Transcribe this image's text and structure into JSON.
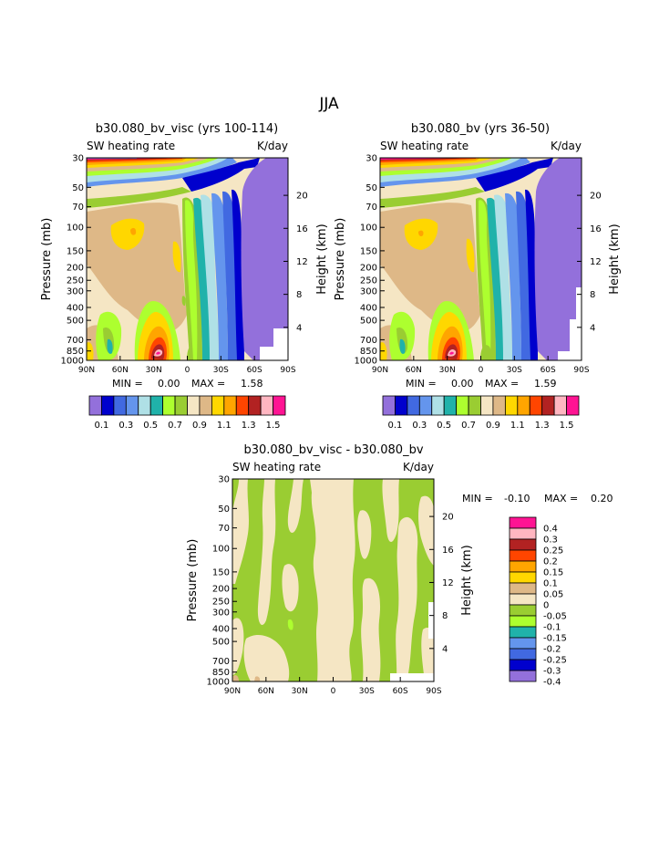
{
  "main_title": "JJA",
  "colors": {
    "scale14": [
      "#9370DB",
      "#0000CD",
      "#4169E1",
      "#6495ED",
      "#AFE0E6",
      "#20B2AA",
      "#ADFF2F",
      "#9ACD32",
      "#F5E6C4",
      "#DEB887",
      "#FFD700",
      "#FFA500",
      "#FF4500",
      "#B22222",
      "#FFB6C1",
      "#FF1493"
    ],
    "diff": [
      "#FF1493",
      "#FFB6C1",
      "#B22222",
      "#FF4500",
      "#FFA500",
      "#FFD700",
      "#DEB887",
      "#F5E6C4",
      "#9ACD32",
      "#ADFF2F",
      "#20B2AA",
      "#6495ED",
      "#4169E1",
      "#0000CD",
      "#9370DB"
    ]
  },
  "chart_data": [
    {
      "type": "heatmap",
      "title": "b30.080_bv_visc (yrs 100-114)",
      "left_label": "SW heating rate",
      "right_label": "K/day",
      "ylabel": "Pressure (mb)",
      "y2label": "Height (km)",
      "xticks": [
        "90N",
        "60N",
        "30N",
        "0",
        "30S",
        "60S",
        "90S"
      ],
      "yticks": [
        "30",
        "50",
        "70",
        "100",
        "150",
        "200",
        "250",
        "300",
        "400",
        "500",
        "700",
        "850",
        "1000"
      ],
      "y2ticks": [
        "20",
        "16",
        "12",
        "8",
        "4"
      ],
      "stats": {
        "min_label": "MIN =",
        "min": "0.00",
        "max_label": "MAX =",
        "max": "1.58"
      },
      "colorbar_labels": [
        "0.1",
        "0.3",
        "0.5",
        "0.7",
        "0.9",
        "1.1",
        "1.3",
        "1.5"
      ],
      "levels": [
        0.1,
        0.2,
        0.3,
        0.4,
        0.5,
        0.6,
        0.7,
        0.8,
        0.9,
        1.0,
        1.1,
        1.2,
        1.3,
        1.4,
        1.5
      ]
    },
    {
      "type": "heatmap",
      "title": "b30.080_bv (yrs 36-50)",
      "left_label": "SW heating rate",
      "right_label": "K/day",
      "ylabel": "Pressure (mb)",
      "y2label": "Height (km)",
      "xticks": [
        "90N",
        "60N",
        "30N",
        "0",
        "30S",
        "60S",
        "90S"
      ],
      "yticks": [
        "30",
        "50",
        "70",
        "100",
        "150",
        "200",
        "250",
        "300",
        "400",
        "500",
        "700",
        "850",
        "1000"
      ],
      "y2ticks": [
        "20",
        "16",
        "12",
        "8",
        "4"
      ],
      "stats": {
        "min_label": "MIN =",
        "min": "0.00",
        "max_label": "MAX =",
        "max": "1.59"
      },
      "colorbar_labels": [
        "0.1",
        "0.3",
        "0.5",
        "0.7",
        "0.9",
        "1.1",
        "1.3",
        "1.5"
      ],
      "levels": [
        0.1,
        0.2,
        0.3,
        0.4,
        0.5,
        0.6,
        0.7,
        0.8,
        0.9,
        1.0,
        1.1,
        1.2,
        1.3,
        1.4,
        1.5
      ]
    },
    {
      "type": "heatmap",
      "title": "b30.080_bv_visc - b30.080_bv",
      "left_label": "SW heating rate",
      "right_label": "K/day",
      "ylabel": "Pressure (mb)",
      "y2label": "Height (km)",
      "xticks": [
        "90N",
        "60N",
        "30N",
        "0",
        "30S",
        "60S",
        "90S"
      ],
      "yticks": [
        "30",
        "50",
        "70",
        "100",
        "150",
        "200",
        "250",
        "300",
        "400",
        "500",
        "700",
        "850",
        "1000"
      ],
      "y2ticks": [
        "20",
        "16",
        "12",
        "8",
        "4"
      ],
      "stats": {
        "min_label": "MIN =",
        "min": "-0.10",
        "max_label": "MAX =",
        "max": "0.20"
      },
      "colorbar_labels": [
        "0.4",
        "0.3",
        "0.25",
        "0.2",
        "0.15",
        "0.1",
        "0.05",
        "0",
        "-0.05",
        "-0.1",
        "-0.15",
        "-0.2",
        "-0.25",
        "-0.3",
        "-0.4"
      ],
      "levels": [
        0.4,
        0.3,
        0.25,
        0.2,
        0.15,
        0.1,
        0.05,
        0,
        -0.05,
        -0.1,
        -0.15,
        -0.2,
        -0.25,
        -0.3,
        -0.4
      ]
    }
  ]
}
